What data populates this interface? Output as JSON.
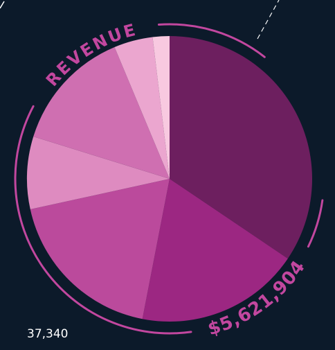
{
  "chart_data": {
    "type": "pie",
    "title": "REVENUE",
    "annotations": [
      "$5,621,904",
      "37,340"
    ],
    "values": [
      34.4,
      18.6,
      18.5,
      8.2,
      13.9,
      4.4,
      1.9
    ],
    "colors": [
      "#6d1f5f",
      "#9c2782",
      "#bb4a9c",
      "#de8bc0",
      "#cf6fb1",
      "#eba6cf",
      "#f8c9e0"
    ],
    "accent": "#c2479f"
  }
}
